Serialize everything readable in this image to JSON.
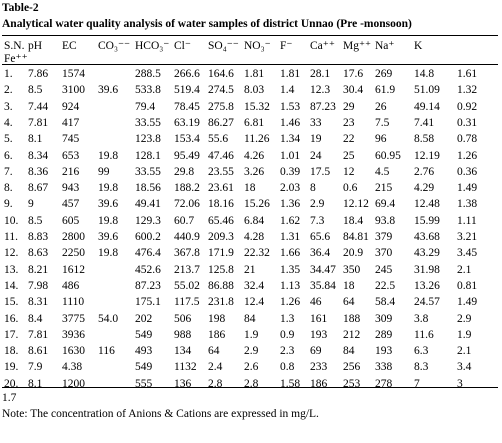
{
  "header": {
    "title": "Table-2",
    "caption": "Analytical water quality analysis of water samples of district Unnao (Pre -monsoon)"
  },
  "table": {
    "columns": [
      "S.N.",
      "pH",
      "EC",
      "CO₃⁻⁻",
      "HCO₃⁻",
      "Cl⁻",
      "SO₄⁻⁻",
      "NO₃⁻",
      "F⁻",
      "Ca⁺⁺",
      "Mg⁺⁺",
      "Na⁺",
      "K",
      "Fe⁺⁺"
    ],
    "rows": [
      [
        "1.",
        "7.86",
        "1574",
        null,
        "288.5",
        "266.6",
        "164.6",
        "1.81",
        "1.81",
        "28.1",
        "17.6",
        "269",
        "14.8",
        "1.61"
      ],
      [
        "2.",
        "8.5",
        "3100",
        "39.6",
        "533.8",
        "519.4",
        "274.5",
        "8.03",
        "1.4",
        "12.3",
        "30.4",
        "61.9",
        "51.09",
        "1.32"
      ],
      [
        "3.",
        "7.44",
        "924",
        null,
        "79.4",
        "78.45",
        "275.8",
        "15.32",
        "1.53",
        "87.23",
        "29",
        "26",
        "49.14",
        "0.92"
      ],
      [
        "4.",
        "7.81",
        "417",
        null,
        "33.55",
        "63.19",
        "86.27",
        "6.81",
        "1.46",
        "33",
        "23",
        "7.5",
        "7.41",
        "0.31"
      ],
      [
        "5.",
        "8.1",
        "745",
        null,
        "123.8",
        "153.4",
        "55.6",
        "11.26",
        "1.34",
        "19",
        "22",
        "96",
        "8.58",
        "0.78"
      ],
      [
        "6.",
        "8.34",
        "653",
        "19.8",
        "128.1",
        "95.49",
        "47.46",
        "4.26",
        "1.01",
        "24",
        "25",
        "60.95",
        "12.19",
        "1.26"
      ],
      [
        "7.",
        "8.36",
        "216",
        "99",
        "33.55",
        "29.8",
        "23.55",
        "3.26",
        "0.39",
        "17.5",
        "12",
        "4.5",
        "2.76",
        "0.36"
      ],
      [
        "8.",
        "8.67",
        "943",
        "19.8",
        "18.56",
        "188.2",
        "23.61",
        "18",
        "2.03",
        "8",
        "0.6",
        "215",
        "4.29",
        "1.49"
      ],
      [
        "9.",
        "9",
        "457",
        "39.6",
        "49.41",
        "72.06",
        "18.16",
        "15.26",
        "1.36",
        "2.9",
        "12.12",
        "69.4",
        "12.48",
        "1.38"
      ],
      [
        "10.",
        "8.5",
        "605",
        "19.8",
        "129.3",
        "60.7",
        "65.46",
        "6.84",
        "1.62",
        "7.3",
        "18.4",
        "93.8",
        "15.99",
        "1.11"
      ],
      [
        "11.",
        "8.83",
        "2800",
        "39.6",
        "600.2",
        "440.9",
        "209.3",
        "4.28",
        "1.31",
        "65.6",
        "84.81",
        "379",
        "43.68",
        "3.21"
      ],
      [
        "12.",
        "8.63",
        "2250",
        "19.8",
        "476.4",
        "367.8",
        "171.9",
        "22.32",
        "1.66",
        "36.4",
        "20.9",
        "370",
        "43.29",
        "3.45"
      ],
      [
        "13.",
        "8.21",
        "1612",
        null,
        "452.6",
        "213.7",
        "125.8",
        "21",
        "1.35",
        "34.47",
        "350",
        "245",
        "31.98",
        "2.1"
      ],
      [
        "14.",
        "7.98",
        "486",
        null,
        "87.23",
        "55.02",
        "86.88",
        "32.4",
        "1.13",
        "35.84",
        "18",
        "22.5",
        "13.26",
        "0.81"
      ],
      [
        "15.",
        "8.31",
        "1110",
        null,
        "175.1",
        "117.5",
        "231.8",
        "12.4",
        "1.26",
        "46",
        "64",
        "58.4",
        "24.57",
        "1.49"
      ],
      [
        "16.",
        "8.4",
        "3775",
        "54.0",
        "202",
        "506",
        "198",
        "84",
        "1.3",
        "161",
        "188",
        "309",
        "3.8",
        "2.9"
      ],
      [
        "17.",
        "7.81",
        "3936",
        null,
        "549",
        "988",
        "186",
        "1.9",
        "0.9",
        "193",
        "212",
        "289",
        "11.6",
        "1.9"
      ],
      [
        "18.",
        "8.61",
        "1630",
        "116",
        "493",
        "134",
        "64",
        "2.9",
        "2.3",
        "69",
        "84",
        "193",
        "6.3",
        "2.1"
      ],
      [
        "19.",
        "7.9",
        "4.38",
        null,
        "549",
        "1132",
        "2.4",
        "2.6",
        "0.8",
        "233",
        "256",
        "338",
        "8.3",
        "3.4"
      ],
      [
        "20.",
        "8.1",
        "1200",
        null,
        "555",
        "136",
        "2.8",
        "2.8",
        "1.58",
        "186",
        "253",
        "278",
        "7",
        "3"
      ]
    ],
    "overflow": "1.7"
  },
  "note": "Note:  The concentration of Anions & Cations are expressed in mg/L."
}
